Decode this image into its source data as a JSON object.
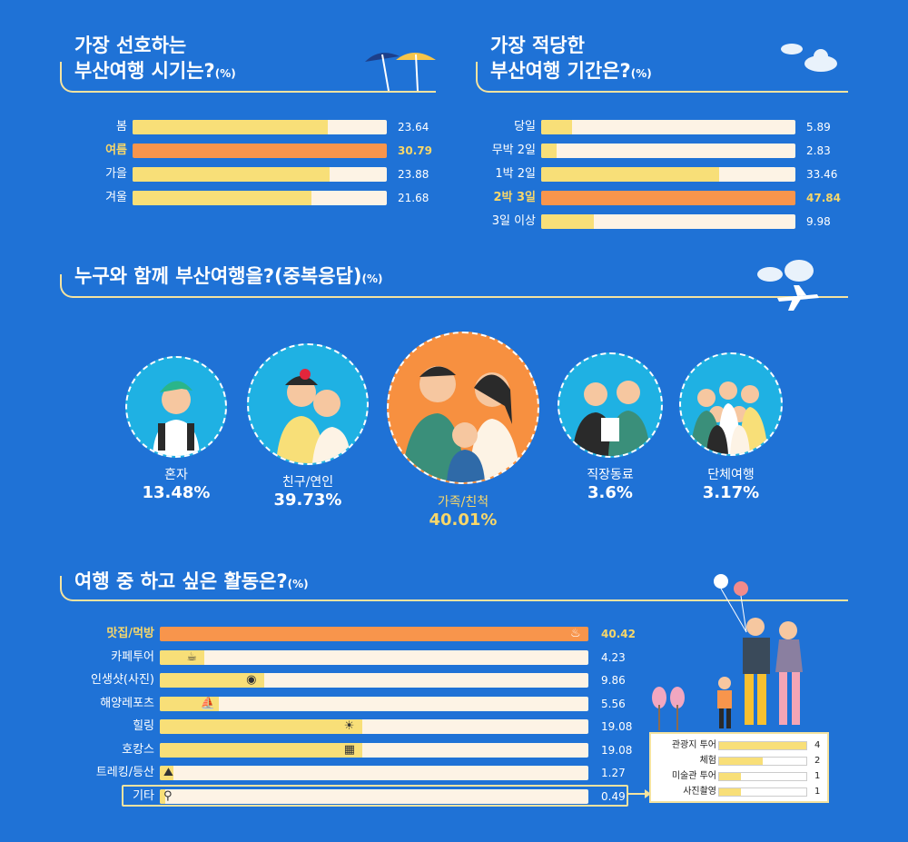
{
  "colors": {
    "background": "#1f72d6",
    "bar_fill": "#f8df78",
    "bar_highlight": "#f8954c",
    "bar_track": "#fdf3e5",
    "label_highlight": "#f7d76a",
    "divider": "#f4e3a0"
  },
  "unit": "(%)",
  "season": {
    "title_line1": "가장 선호하는",
    "title_line2": "부산여행 시기는?"
  },
  "duration": {
    "title_line1": "가장 적당한",
    "title_line2": "부산여행 기간은?"
  },
  "companion": {
    "title": "누구와 함께 부산여행을?(중복응답)"
  },
  "activity": {
    "title": "여행 중 하고 싶은 활동은?"
  },
  "chart_data": [
    {
      "type": "bar",
      "title": "가장 선호하는 부산여행 시기는?",
      "unit": "%",
      "categories": [
        "봄",
        "여름",
        "가을",
        "겨울"
      ],
      "values": [
        23.64,
        30.79,
        23.88,
        21.68
      ],
      "labels": [
        "23.64",
        "30.79",
        "23.88",
        "21.68"
      ],
      "highlight_index": 1,
      "xlim": [
        0,
        30.79
      ]
    },
    {
      "type": "bar",
      "title": "가장 적당한 부산여행 기간은?",
      "unit": "%",
      "categories": [
        "당일",
        "무박 2일",
        "1박 2일",
        "2박 3일",
        "3일 이상"
      ],
      "values": [
        5.89,
        2.83,
        33.46,
        47.84,
        9.98
      ],
      "labels": [
        "5.89",
        "2.83",
        "33.46",
        "47.84",
        "9.98"
      ],
      "highlight_index": 3,
      "xlim": [
        0,
        47.84
      ]
    },
    {
      "type": "bar",
      "title": "누구와 함께 부산여행을?(중복응답)",
      "unit": "%",
      "categories": [
        "혼자",
        "친구/연인",
        "가족/친척",
        "직장동료",
        "단체여행"
      ],
      "values": [
        13.48,
        39.73,
        40.01,
        3.6,
        3.17
      ],
      "labels": [
        "13.48%",
        "39.73%",
        "40.01%",
        "3.6%",
        "3.17%"
      ],
      "highlight_index": 2
    },
    {
      "type": "bar",
      "title": "여행 중 하고 싶은 활동은?",
      "unit": "%",
      "categories": [
        "맛집/먹방",
        "카페투어",
        "인생샷(사진)",
        "해양레포츠",
        "힐링",
        "호캉스",
        "트레킹/등산",
        "기타"
      ],
      "values": [
        40.42,
        4.23,
        9.86,
        5.56,
        19.08,
        19.08,
        1.27,
        0.49
      ],
      "labels": [
        "40.42",
        "4.23",
        "9.86",
        "5.56",
        "19.08",
        "19.08",
        "1.27",
        "0.49"
      ],
      "icons": [
        "chef-hat-icon",
        "coffee-cup-icon",
        "camera-icon",
        "sailboat-icon",
        "palm-island-icon",
        "hotel-icon",
        "mountain-icon",
        "magnifier-icon"
      ],
      "icon_glyphs": [
        "♨",
        "☕",
        "◉",
        "⛵",
        "☀",
        "▦",
        "⛰",
        "⚲"
      ],
      "highlight_index": 0,
      "xlim": [
        0,
        40.42
      ]
    },
    {
      "type": "bar",
      "title": "기타",
      "categories": [
        "관광지 투어",
        "체험",
        "미술관 투어",
        "사진촬영"
      ],
      "values": [
        4,
        2,
        1,
        1
      ],
      "labels": [
        "4",
        "2",
        "1",
        "1"
      ],
      "xlim": [
        0,
        4
      ]
    }
  ]
}
